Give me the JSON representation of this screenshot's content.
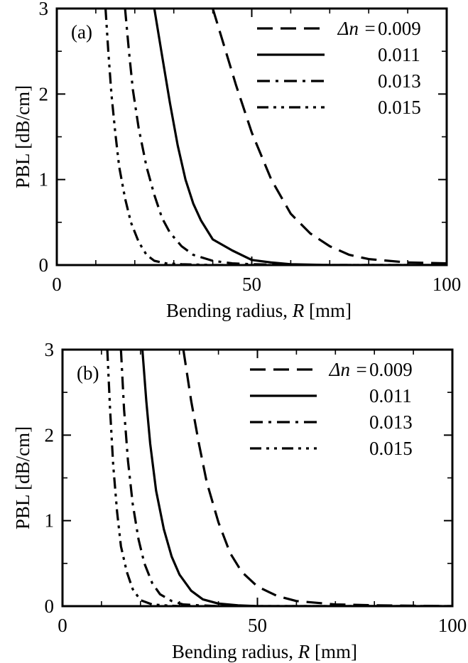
{
  "colors": {
    "line": "#000000",
    "background": "#ffffff"
  },
  "chart_data": [
    {
      "type": "line",
      "panel_label": "(a)",
      "xlabel_text": "Bending radius, ",
      "xlabel_symbol": "R",
      "xlabel_unit": " [mm]",
      "ylabel": "PBL [dB/cm]",
      "xlim": [
        0,
        100
      ],
      "ylim": [
        0,
        3
      ],
      "x_ticks": [
        "0",
        "50",
        "100"
      ],
      "y_ticks": [
        "0",
        "1",
        "2",
        "3"
      ],
      "legend_prefix": "Δn =",
      "series": [
        {
          "name": "0.009",
          "dash": "dashed",
          "x": [
            40,
            43,
            46,
            50,
            55,
            60,
            65,
            70,
            75,
            80,
            90,
            100
          ],
          "y": [
            3.0,
            2.55,
            2.1,
            1.55,
            1.0,
            0.6,
            0.37,
            0.22,
            0.12,
            0.07,
            0.03,
            0.02
          ]
        },
        {
          "name": "0.011",
          "dash": "solid",
          "x": [
            25,
            27,
            29,
            31,
            33,
            35,
            37,
            40,
            45,
            50,
            55,
            60,
            70,
            100
          ],
          "y": [
            3.0,
            2.45,
            1.9,
            1.4,
            1.0,
            0.72,
            0.52,
            0.3,
            0.17,
            0.06,
            0.03,
            0.01,
            0.0,
            0.0
          ]
        },
        {
          "name": "0.013",
          "dash": "dashdot",
          "x": [
            17.5,
            18.5,
            19.5,
            21,
            23,
            25,
            27,
            29,
            32,
            35,
            40,
            45,
            50,
            60,
            100
          ],
          "y": [
            3.0,
            2.5,
            2.05,
            1.6,
            1.15,
            0.82,
            0.55,
            0.38,
            0.22,
            0.12,
            0.05,
            0.02,
            0.01,
            0.0,
            0.0
          ]
        },
        {
          "name": "0.015",
          "dash": "dashdotdot",
          "x": [
            12.5,
            13.2,
            14,
            15,
            16,
            17.5,
            19,
            21,
            23,
            25,
            28,
            32,
            40,
            100
          ],
          "y": [
            3.0,
            2.5,
            2.0,
            1.55,
            1.15,
            0.78,
            0.5,
            0.27,
            0.12,
            0.05,
            0.02,
            0.01,
            0.0,
            0.0
          ]
        }
      ]
    },
    {
      "type": "line",
      "panel_label": "(b)",
      "xlabel_text": "Bending radius, ",
      "xlabel_symbol": "R",
      "xlabel_unit": " [mm]",
      "ylabel": "PBL [dB/cm]",
      "xlim": [
        0,
        100
      ],
      "ylim": [
        0,
        3
      ],
      "x_ticks": [
        "0",
        "50",
        "100"
      ],
      "y_ticks": [
        "0",
        "1",
        "2",
        "3"
      ],
      "legend_prefix": "Δn =",
      "series": [
        {
          "name": "0.009",
          "dash": "dashed",
          "x": [
            31,
            33,
            35,
            37,
            40,
            43,
            46,
            50,
            55,
            60,
            70,
            80,
            100
          ],
          "y": [
            3.0,
            2.4,
            1.9,
            1.45,
            0.98,
            0.62,
            0.4,
            0.23,
            0.12,
            0.06,
            0.02,
            0.01,
            0.0
          ]
        },
        {
          "name": "0.011",
          "dash": "solid",
          "x": [
            20.5,
            21.5,
            22.5,
            24,
            26,
            28,
            30,
            33,
            36,
            40,
            45,
            50,
            100
          ],
          "y": [
            3.0,
            2.4,
            1.9,
            1.35,
            0.9,
            0.58,
            0.37,
            0.18,
            0.08,
            0.03,
            0.01,
            0.0,
            0.0
          ]
        },
        {
          "name": "0.013",
          "dash": "dashdot",
          "x": [
            15,
            15.8,
            16.8,
            18,
            19.5,
            21,
            23,
            25,
            28,
            31,
            35,
            40,
            100
          ],
          "y": [
            3.0,
            2.3,
            1.7,
            1.2,
            0.78,
            0.5,
            0.27,
            0.14,
            0.06,
            0.02,
            0.01,
            0.0,
            0.0
          ]
        },
        {
          "name": "0.015",
          "dash": "dashdotdot",
          "x": [
            11.5,
            12.2,
            13,
            14,
            15,
            16.5,
            18,
            20,
            23,
            26,
            30,
            100
          ],
          "y": [
            3.0,
            2.3,
            1.65,
            1.1,
            0.7,
            0.4,
            0.2,
            0.07,
            0.02,
            0.01,
            0.0,
            0.0
          ]
        }
      ]
    }
  ]
}
